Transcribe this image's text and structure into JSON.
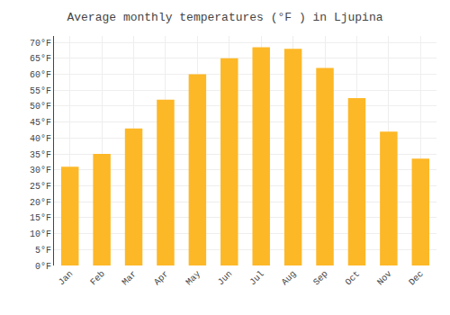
{
  "chart_data": {
    "type": "bar",
    "title": "Average monthly temperatures (°F ) in Ljupina",
    "categories": [
      "Jan",
      "Feb",
      "Mar",
      "Apr",
      "May",
      "Jun",
      "Jul",
      "Aug",
      "Sep",
      "Oct",
      "Nov",
      "Dec"
    ],
    "values": [
      31,
      35,
      43,
      52,
      60,
      65,
      68.5,
      68,
      62,
      52.5,
      42,
      33.5
    ],
    "color": "#FDB827",
    "ylim": [
      0,
      72
    ],
    "yticks": [
      {
        "value": 0,
        "label": "0°F"
      },
      {
        "value": 5,
        "label": "5°F"
      },
      {
        "value": 10,
        "label": "10°F"
      },
      {
        "value": 15,
        "label": "15°F"
      },
      {
        "value": 20,
        "label": "20°F"
      },
      {
        "value": 25,
        "label": "25°F"
      },
      {
        "value": 30,
        "label": "30°F"
      },
      {
        "value": 35,
        "label": "35°F"
      },
      {
        "value": 40,
        "label": "40°F"
      },
      {
        "value": 45,
        "label": "45°F"
      },
      {
        "value": 50,
        "label": "50°F"
      },
      {
        "value": 55,
        "label": "55°F"
      },
      {
        "value": 60,
        "label": "60°F"
      },
      {
        "value": 65,
        "label": "65°F"
      },
      {
        "value": 70,
        "label": "70°F"
      }
    ],
    "grid": true
  }
}
